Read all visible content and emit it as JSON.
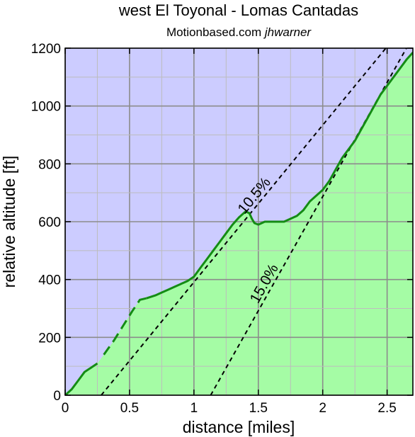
{
  "chart_data": {
    "type": "area",
    "title": "west El Toyonal - Lomas Cantadas",
    "subtitle_site": "Motionbased.com",
    "subtitle_author": "jhwarner",
    "xlabel": "distance [miles]",
    "ylabel": "relative altitude [ft]",
    "xlim": [
      0,
      2.7
    ],
    "ylim": [
      0,
      1200
    ],
    "xticks": [
      0,
      0.5,
      1,
      1.5,
      2,
      2.5
    ],
    "xtick_labels": [
      "0",
      "0.5",
      "1",
      "1.5",
      "2",
      "2.5"
    ],
    "yticks": [
      0,
      200,
      400,
      600,
      800,
      1000,
      1200
    ],
    "ytick_labels": [
      "0",
      "200",
      "400",
      "600",
      "800",
      "1000",
      "1200"
    ],
    "grid": true,
    "colors": {
      "sky": "#ccccff",
      "fill": "#a5fca5",
      "profile_line": "#148c14",
      "grid_major": "#8c8c8c",
      "grid_minor": "#bdbdbd"
    },
    "profile": {
      "x": [
        0,
        0.05,
        0.1,
        0.15,
        0.2,
        0.25,
        0.3,
        0.38,
        0.45,
        0.52,
        0.58,
        0.63,
        0.7,
        0.75,
        0.8,
        0.85,
        0.9,
        0.95,
        1.0,
        1.05,
        1.1,
        1.15,
        1.2,
        1.25,
        1.3,
        1.35,
        1.4,
        1.43,
        1.45,
        1.47,
        1.5,
        1.55,
        1.6,
        1.65,
        1.7,
        1.75,
        1.8,
        1.85,
        1.9,
        1.95,
        2.0,
        2.05,
        2.1,
        2.15,
        2.2,
        2.25,
        2.3,
        2.35,
        2.4,
        2.45,
        2.5,
        2.55,
        2.6,
        2.65,
        2.7
      ],
      "y": [
        0,
        20,
        50,
        80,
        95,
        110,
        140,
        190,
        240,
        290,
        330,
        335,
        345,
        355,
        365,
        375,
        385,
        395,
        410,
        440,
        470,
        500,
        530,
        560,
        590,
        615,
        635,
        630,
        610,
        595,
        590,
        600,
        600,
        600,
        600,
        610,
        620,
        640,
        670,
        690,
        710,
        740,
        780,
        820,
        850,
        880,
        920,
        960,
        1000,
        1040,
        1070,
        1100,
        1130,
        1160,
        1185
      ]
    },
    "dashed_segment_x": [
      0.28,
      0.63
    ],
    "grade_lines": [
      {
        "label": "10.5%",
        "x": [
          0.28,
          2.49
        ],
        "y": [
          0,
          1200
        ]
      },
      {
        "label": "15.0%",
        "x": [
          1.13,
          2.65
        ],
        "y": [
          0,
          1200
        ]
      }
    ]
  }
}
